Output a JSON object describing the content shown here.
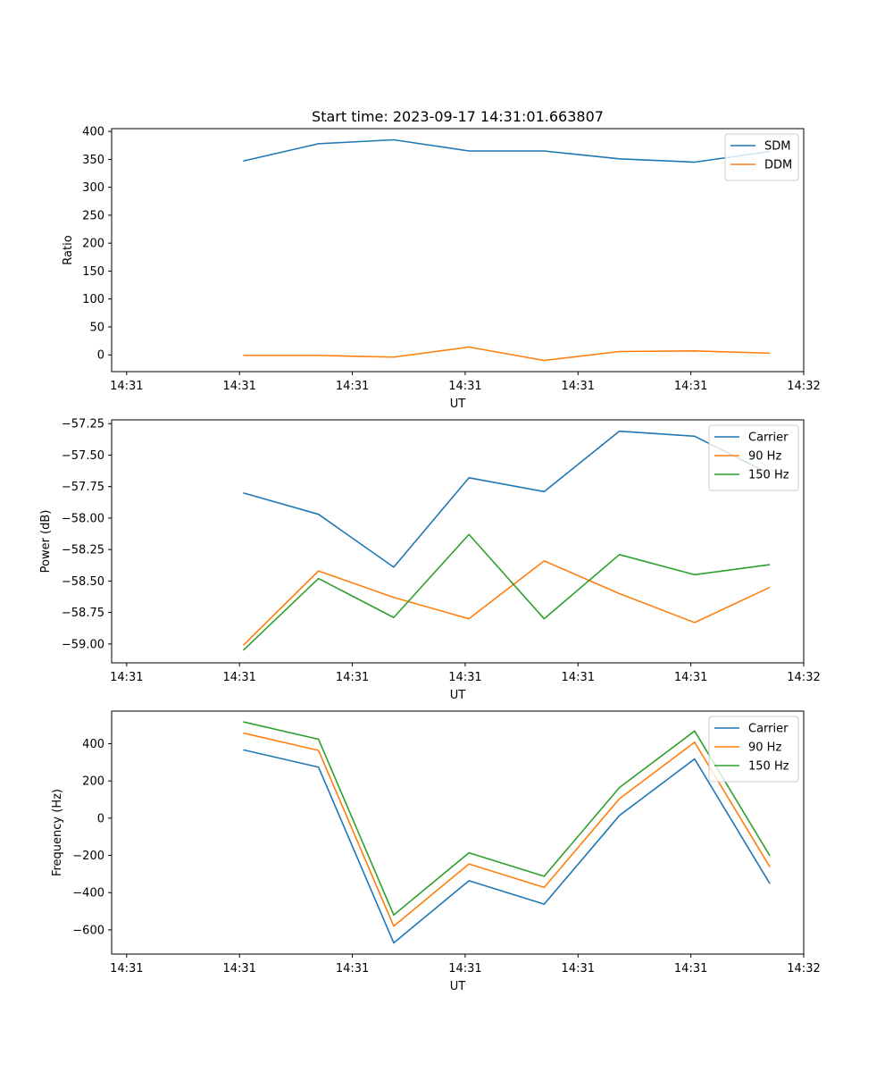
{
  "figure": {
    "title": "Start time: 2023-09-17 14:31:01.663807",
    "colors": {
      "blue": "#1f77b4",
      "orange": "#ff7f0e",
      "green": "#2ca02c"
    }
  },
  "chart_data": [
    {
      "type": "line",
      "title": "Start time: 2023-09-17 14:31:01.663807",
      "xlabel": "UT",
      "ylabel": "Ratio",
      "x": [
        1,
        2,
        3,
        4,
        5,
        6,
        7,
        8
      ],
      "xlim": [
        -0.75,
        8.45
      ],
      "x_ticks": [
        -0.55,
        0.95,
        2.45,
        3.95,
        5.45,
        6.95,
        8.45
      ],
      "x_tick_labels": [
        "14:31",
        "14:31",
        "14:31",
        "14:31",
        "14:31",
        "14:31",
        "14:32"
      ],
      "ylim": [
        -30,
        405
      ],
      "y_ticks": [
        0,
        50,
        100,
        150,
        200,
        250,
        300,
        350,
        400
      ],
      "y_tick_labels": [
        "0",
        "50",
        "100",
        "150",
        "200",
        "250",
        "300",
        "350",
        "400"
      ],
      "legend_position": "top-right",
      "series": [
        {
          "name": "SDM",
          "color": "#1f77b4",
          "values": [
            347,
            378,
            385,
            365,
            365,
            351,
            345,
            364
          ]
        },
        {
          "name": "DDM",
          "color": "#ff7f0e",
          "values": [
            -1,
            -1,
            -4,
            14,
            -10,
            6,
            7,
            3
          ]
        }
      ]
    },
    {
      "type": "line",
      "xlabel": "UT",
      "ylabel": "Power (dB)",
      "x": [
        1,
        2,
        3,
        4,
        5,
        6,
        7,
        8
      ],
      "xlim": [
        -0.75,
        8.45
      ],
      "x_ticks": [
        -0.55,
        0.95,
        2.45,
        3.95,
        5.45,
        6.95,
        8.45
      ],
      "x_tick_labels": [
        "14:31",
        "14:31",
        "14:31",
        "14:31",
        "14:31",
        "14:31",
        "14:32"
      ],
      "ylim": [
        -59.15,
        -57.22
      ],
      "y_ticks": [
        -59.0,
        -58.75,
        -58.5,
        -58.25,
        -58.0,
        -57.75,
        -57.5,
        -57.25
      ],
      "y_tick_labels": [
        "−59.00",
        "−58.75",
        "−58.50",
        "−58.25",
        "−58.00",
        "−57.75",
        "−57.50",
        "−57.25"
      ],
      "legend_position": "top-right",
      "series": [
        {
          "name": "Carrier",
          "color": "#1f77b4",
          "values": [
            -57.8,
            -57.97,
            -58.39,
            -57.68,
            -57.79,
            -57.31,
            -57.35,
            -57.65
          ]
        },
        {
          "name": "90 Hz",
          "color": "#ff7f0e",
          "values": [
            -59.01,
            -58.42,
            -58.63,
            -58.8,
            -58.34,
            -58.6,
            -58.83,
            -58.55
          ]
        },
        {
          "name": "150 Hz",
          "color": "#2ca02c",
          "values": [
            -59.05,
            -58.48,
            -58.79,
            -58.13,
            -58.8,
            -58.29,
            -58.45,
            -58.37
          ]
        }
      ]
    },
    {
      "type": "line",
      "xlabel": "UT",
      "ylabel": "Frequency (Hz)",
      "x": [
        1,
        2,
        3,
        4,
        5,
        6,
        7,
        8
      ],
      "xlim": [
        -0.75,
        8.45
      ],
      "x_ticks": [
        -0.55,
        0.95,
        2.45,
        3.95,
        5.45,
        6.95,
        8.45
      ],
      "x_tick_labels": [
        "14:31",
        "14:31",
        "14:31",
        "14:31",
        "14:31",
        "14:31",
        "14:32"
      ],
      "ylim": [
        -730,
        575
      ],
      "y_ticks": [
        -600,
        -400,
        -200,
        0,
        200,
        400
      ],
      "y_tick_labels": [
        "−600",
        "−400",
        "−200",
        "0",
        "200",
        "400"
      ],
      "legend_position": "top-right",
      "series": [
        {
          "name": "Carrier",
          "color": "#1f77b4",
          "values": [
            367,
            274,
            -670,
            -336,
            -462,
            14,
            318,
            -352
          ]
        },
        {
          "name": "90 Hz",
          "color": "#ff7f0e",
          "values": [
            457,
            364,
            -580,
            -246,
            -372,
            104,
            408,
            -262
          ]
        },
        {
          "name": "150 Hz",
          "color": "#2ca02c",
          "values": [
            517,
            424,
            -520,
            -186,
            -312,
            164,
            468,
            -202
          ]
        }
      ]
    }
  ]
}
